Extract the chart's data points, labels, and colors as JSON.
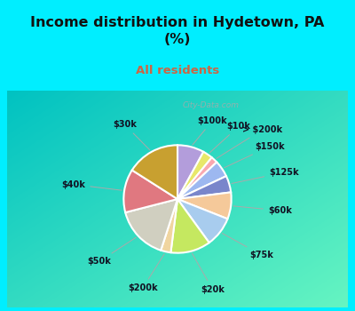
{
  "title": "Income distribution in Hydetown, PA\n(%)",
  "subtitle": "All residents",
  "title_color": "#111111",
  "subtitle_color": "#cc6644",
  "background_cyan": "#00eeff",
  "background_chart_color": "#e0f5e8",
  "labels": [
    "$100k",
    "$10k",
    "> $200k",
    "$150k",
    "$125k",
    "$60k",
    "$75k",
    "$20k",
    "$200k",
    "$50k",
    "$40k",
    "$30k"
  ],
  "values": [
    8,
    3,
    2,
    5,
    5,
    8,
    9,
    12,
    3,
    16,
    13,
    16
  ],
  "colors": [
    "#b39ddb",
    "#e8e86a",
    "#f9a8b0",
    "#9db8f0",
    "#7986cb",
    "#f5c99a",
    "#a8ccee",
    "#c5e860",
    "#f0d5a0",
    "#d0cfc0",
    "#e07880",
    "#c8a030"
  ],
  "watermark": "City-Data.com"
}
